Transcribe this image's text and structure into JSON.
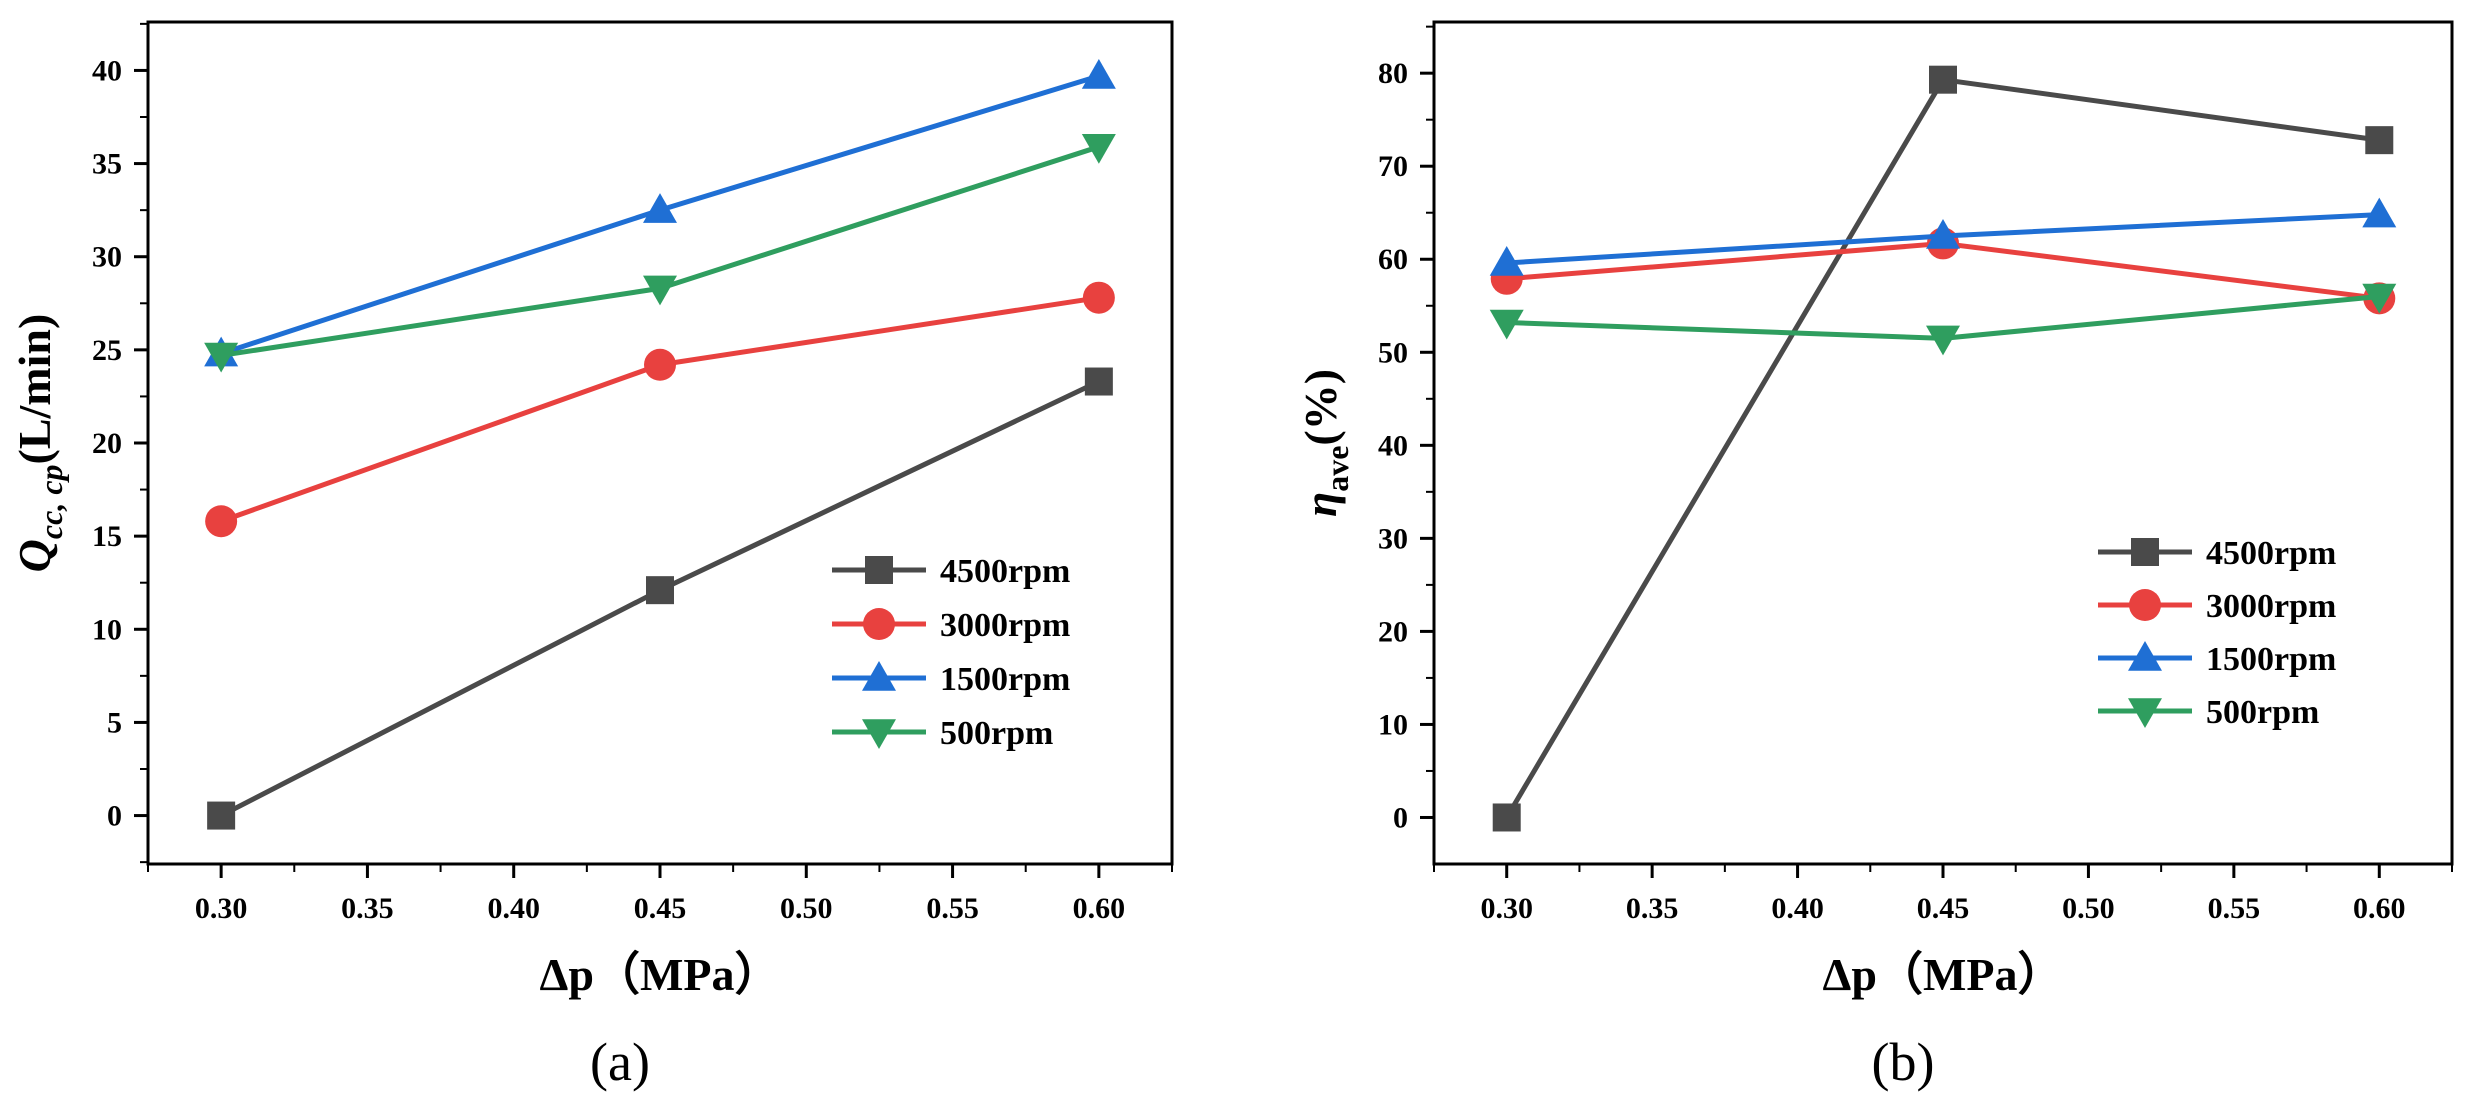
{
  "figure": {
    "panels": [
      "(a)",
      "(b)"
    ]
  },
  "chart_data": [
    {
      "type": "line",
      "panel_label": "(a)",
      "x": [
        0.3,
        0.45,
        0.6
      ],
      "xlabel": "Δp（MPa）",
      "ylabel_main": "Q",
      "ylabel_sub": "cc, cp",
      "ylabel_unit": "(L/min)",
      "xlim": [
        0.275,
        0.625
      ],
      "ylim": [
        -2.6,
        42.6
      ],
      "xticks": [
        "0.30",
        "0.35",
        "0.40",
        "0.45",
        "0.50",
        "0.55",
        "0.60"
      ],
      "yticks": [
        "0",
        "5",
        "10",
        "15",
        "20",
        "25",
        "30",
        "35",
        "40"
      ],
      "legend_position": "lower-right",
      "series": [
        {
          "name": "4500rpm",
          "marker": "square",
          "color": "#4a4a4a",
          "values": [
            0.0,
            12.1,
            23.3
          ]
        },
        {
          "name": "3000rpm",
          "marker": "circle",
          "color": "#e8413f",
          "values": [
            15.8,
            24.2,
            27.8
          ]
        },
        {
          "name": "1500rpm",
          "marker": "triangle-up",
          "color": "#1f6fd4",
          "values": [
            24.8,
            32.5,
            39.7
          ]
        },
        {
          "name": "500rpm",
          "marker": "triangle-down",
          "color": "#2f9e5f",
          "values": [
            24.7,
            28.3,
            35.9
          ]
        }
      ]
    },
    {
      "type": "line",
      "panel_label": "(b)",
      "x": [
        0.3,
        0.45,
        0.6
      ],
      "xlabel": "Δp（MPa）",
      "ylabel_main": "η",
      "ylabel_sub": "ave",
      "ylabel_unit": "(%)",
      "xlim": [
        0.275,
        0.625
      ],
      "ylim": [
        -5.0,
        85.5
      ],
      "xticks": [
        "0.30",
        "0.35",
        "0.40",
        "0.45",
        "0.50",
        "0.55",
        "0.60"
      ],
      "yticks": [
        "0",
        "10",
        "20",
        "30",
        "40",
        "50",
        "60",
        "70",
        "80"
      ],
      "legend_position": "lower-right",
      "series": [
        {
          "name": "4500rpm",
          "marker": "square",
          "color": "#4a4a4a",
          "values": [
            0.0,
            79.3,
            72.8
          ]
        },
        {
          "name": "3000rpm",
          "marker": "circle",
          "color": "#e8413f",
          "values": [
            57.9,
            61.7,
            55.8
          ]
        },
        {
          "name": "1500rpm",
          "marker": "triangle-up",
          "color": "#1f6fd4",
          "values": [
            59.6,
            62.5,
            64.8
          ]
        },
        {
          "name": "500rpm",
          "marker": "triangle-down",
          "color": "#2f9e5f",
          "values": [
            53.2,
            51.5,
            56.0
          ]
        }
      ]
    }
  ]
}
